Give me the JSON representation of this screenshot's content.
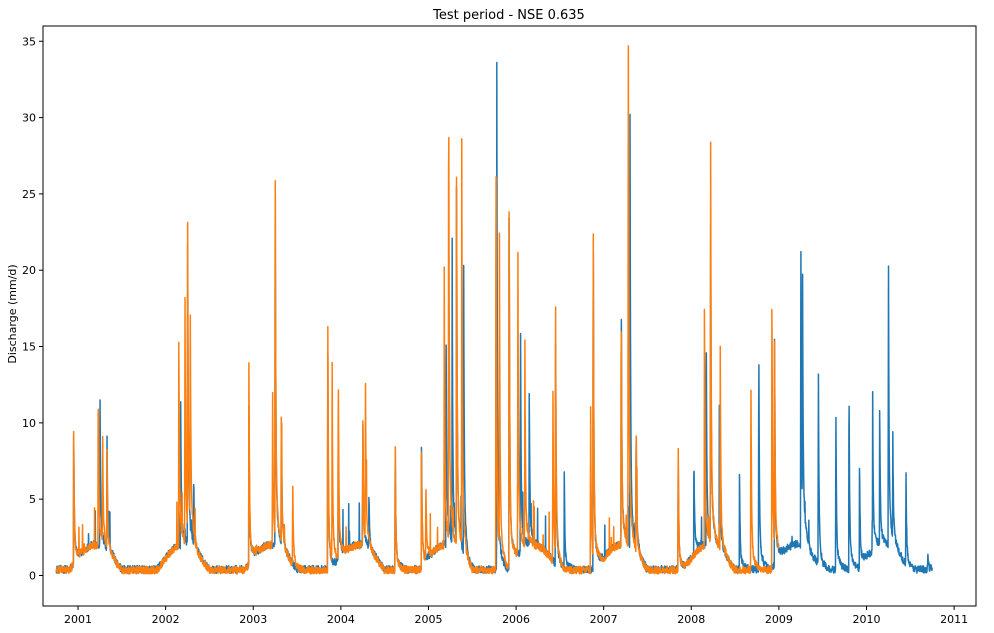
{
  "chart_data": {
    "type": "line",
    "title": "Test period - NSE 0.635",
    "xlabel": "",
    "ylabel": "Discharge (mm/d)",
    "xlim": [
      2000.6,
      2011.25
    ],
    "ylim": [
      -2,
      36
    ],
    "x_ticks": [
      2001,
      2002,
      2003,
      2004,
      2005,
      2006,
      2007,
      2008,
      2009,
      2010,
      2011
    ],
    "x_tick_labels": [
      "2001",
      "2002",
      "2003",
      "2004",
      "2005",
      "2006",
      "2007",
      "2008",
      "2009",
      "2010",
      "2011"
    ],
    "y_ticks": [
      0,
      5,
      10,
      15,
      20,
      25,
      30,
      35
    ],
    "y_tick_labels": [
      "0",
      "5",
      "10",
      "15",
      "20",
      "25",
      "30",
      "35"
    ],
    "grid": false,
    "legend": "none",
    "series": [
      {
        "color": "#1f77b4",
        "x_range": [
          2000.75,
          2010.75
        ],
        "baseline": 0.4,
        "peaks": [
          [
            2000.95,
            8.2
          ],
          [
            2001.25,
            10.0
          ],
          [
            2001.33,
            7.0
          ],
          [
            2002.17,
            10.5
          ],
          [
            2002.25,
            20.0
          ],
          [
            2002.32,
            4.2
          ],
          [
            2002.95,
            10.5
          ],
          [
            2003.25,
            23.5
          ],
          [
            2003.32,
            8.5
          ],
          [
            2003.85,
            14.5
          ],
          [
            2003.97,
            8.8
          ],
          [
            2004.25,
            8.0
          ],
          [
            2004.32,
            3.5
          ],
          [
            2004.62,
            8.0
          ],
          [
            2004.92,
            8.5
          ],
          [
            2005.2,
            15.0
          ],
          [
            2005.27,
            18.3
          ],
          [
            2005.32,
            24.0
          ],
          [
            2005.4,
            21.5
          ],
          [
            2005.78,
            28.5
          ],
          [
            2005.92,
            24.0
          ],
          [
            2006.05,
            15.0
          ],
          [
            2006.15,
            10.0
          ],
          [
            2006.45,
            15.0
          ],
          [
            2006.55,
            6.0
          ],
          [
            2006.88,
            22.0
          ],
          [
            2007.2,
            16.5
          ],
          [
            2007.3,
            26.5
          ],
          [
            2007.37,
            8.0
          ],
          [
            2007.85,
            7.0
          ],
          [
            2008.03,
            6.5
          ],
          [
            2008.17,
            14.0
          ],
          [
            2008.22,
            20.5
          ],
          [
            2008.32,
            10.0
          ],
          [
            2008.55,
            6.3
          ],
          [
            2008.77,
            14.7
          ],
          [
            2008.95,
            14.5
          ],
          [
            2009.25,
            19.7
          ],
          [
            2009.27,
            13.8
          ],
          [
            2009.45,
            12.8
          ],
          [
            2009.65,
            10.5
          ],
          [
            2009.8,
            12.1
          ],
          [
            2009.92,
            6.9
          ],
          [
            2010.07,
            9.5
          ],
          [
            2010.15,
            8.9
          ],
          [
            2010.25,
            18.8
          ],
          [
            2010.3,
            6.5
          ],
          [
            2010.45,
            6.3
          ],
          [
            2010.7,
            1.0
          ]
        ]
      },
      {
        "color": "#ff7f0e",
        "x_range": [
          2000.75,
          2009.0
        ],
        "baseline": 0.35,
        "peaks": [
          [
            2000.95,
            8.6
          ],
          [
            2001.23,
            10.5
          ],
          [
            2001.28,
            7.3
          ],
          [
            2001.33,
            6.0
          ],
          [
            2002.15,
            13.2
          ],
          [
            2002.22,
            16.0
          ],
          [
            2002.25,
            20.4
          ],
          [
            2002.28,
            14.0
          ],
          [
            2002.95,
            13.2
          ],
          [
            2003.22,
            9.9
          ],
          [
            2003.25,
            24.1
          ],
          [
            2003.32,
            8.6
          ],
          [
            2003.45,
            5.5
          ],
          [
            2003.85,
            16.5
          ],
          [
            2003.9,
            12.0
          ],
          [
            2003.97,
            12.5
          ],
          [
            2004.25,
            8.5
          ],
          [
            2004.28,
            10.4
          ],
          [
            2004.62,
            8.0
          ],
          [
            2004.92,
            7.8
          ],
          [
            2004.97,
            4.9
          ],
          [
            2005.18,
            15.7
          ],
          [
            2005.23,
            30.0
          ],
          [
            2005.32,
            25.2
          ],
          [
            2005.38,
            23.2
          ],
          [
            2005.77,
            28.7
          ],
          [
            2005.81,
            17.9
          ],
          [
            2005.92,
            24.3
          ],
          [
            2006.02,
            20.1
          ],
          [
            2006.1,
            12.7
          ],
          [
            2006.42,
            11.4
          ],
          [
            2006.45,
            16.5
          ],
          [
            2006.85,
            11.0
          ],
          [
            2006.88,
            22.2
          ],
          [
            2007.2,
            15.6
          ],
          [
            2007.28,
            34.5
          ],
          [
            2007.37,
            8.0
          ],
          [
            2007.85,
            8.2
          ],
          [
            2008.15,
            15.4
          ],
          [
            2008.22,
            26.2
          ],
          [
            2008.33,
            12.9
          ],
          [
            2008.68,
            12.6
          ],
          [
            2008.92,
            18.0
          ],
          [
            2008.95,
            13.0
          ]
        ]
      }
    ]
  }
}
